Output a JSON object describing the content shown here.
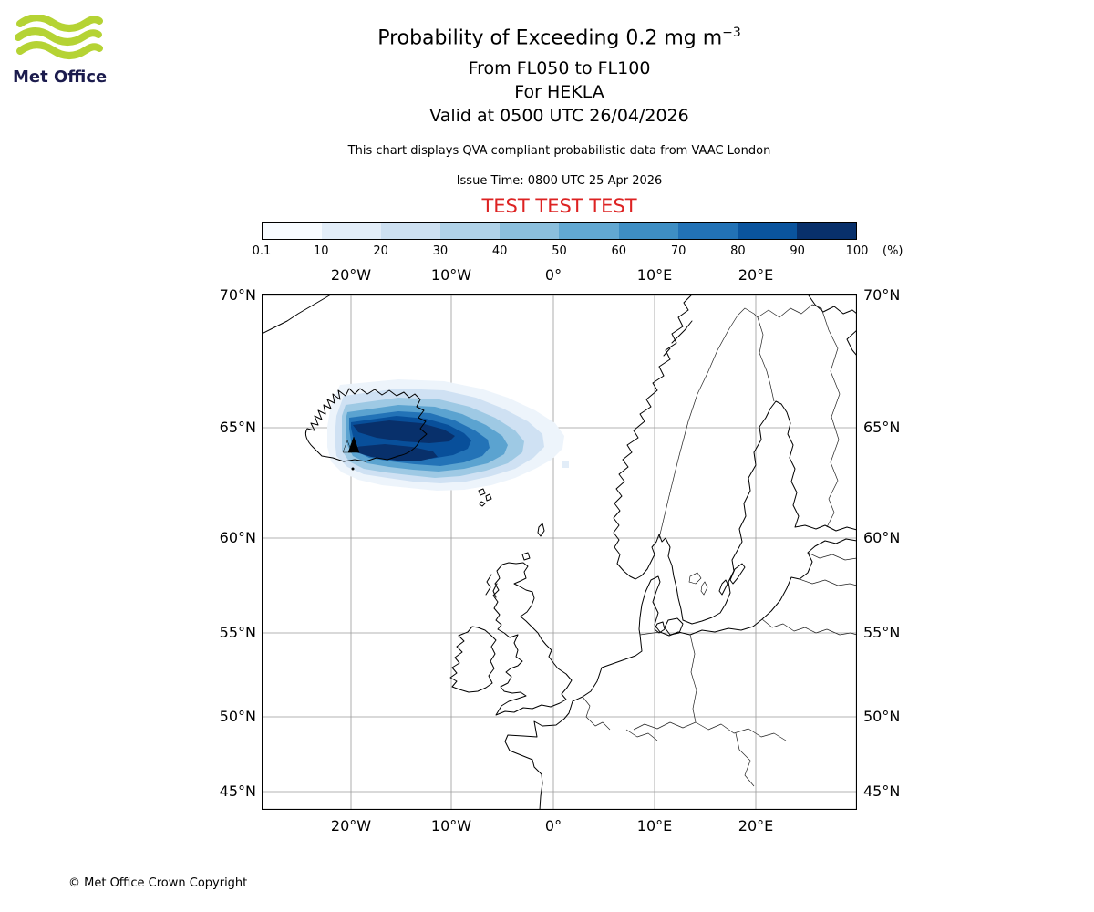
{
  "logo": {
    "brand": "Met Office"
  },
  "header": {
    "title_main": "Probability of Exceeding 0.2 mg m",
    "title_sup": "−3",
    "flight_levels": "From FL050 to FL100",
    "volcano_line": "For HEKLA",
    "valid_line": "Valid at 0500 UTC 26/04/2026",
    "note": "This chart displays QVA compliant probabilistic data from VAAC London",
    "issue_time": "Issue Time: 0800 UTC 25 Apr 2026",
    "test_banner": "TEST TEST TEST"
  },
  "colorbar": {
    "unit_label": "(%)",
    "tick_labels": [
      "0.1",
      "10",
      "20",
      "30",
      "40",
      "50",
      "60",
      "70",
      "80",
      "90",
      "100"
    ],
    "colors": [
      "#f7fbff",
      "#e2edf8",
      "#cde0f1",
      "#b0d2e8",
      "#8bbfdd",
      "#62a8d2",
      "#3e8ec4",
      "#2272b6",
      "#0a549e",
      "#08306b"
    ]
  },
  "map": {
    "lon_labels": [
      "20°W",
      "10°W",
      "0°",
      "10°E",
      "20°E"
    ],
    "lat_labels": [
      "70°N",
      "65°N",
      "60°N",
      "55°N",
      "50°N",
      "45°N"
    ]
  },
  "footer": {
    "copyright": "© Met Office Crown Copyright"
  },
  "colors": {
    "test_red": "#dd2222",
    "logo_green": "#b5d334",
    "logo_text_navy": "#1b1b4d",
    "plume_darkest": "#08306b"
  },
  "chart_data": {
    "type": "heatmap",
    "title": "Probability of Exceeding 0.2 mg m−3",
    "subtitle": [
      "From FL050 to FL100",
      "For HEKLA",
      "Valid at 0500 UTC 26/04/2026"
    ],
    "issue_time": "0800 UTC 25 Apr 2026",
    "source": "VAAC London",
    "compliance_note": "QVA compliant probabilistic data",
    "units": "%",
    "threshold": "0.2 mg m−3",
    "flight_level_range": [
      "FL050",
      "FL100"
    ],
    "volcano": {
      "name": "HEKLA",
      "approx_lon": -19.7,
      "approx_lat": 64.0
    },
    "probability_bins": [
      0.1,
      10,
      20,
      30,
      40,
      50,
      60,
      70,
      80,
      90,
      100
    ],
    "bin_colors": [
      "#f7fbff",
      "#e2edf8",
      "#cde0f1",
      "#b0d2e8",
      "#8bbfdd",
      "#62a8d2",
      "#3e8ec4",
      "#2272b6",
      "#0a549e",
      "#08306b"
    ],
    "projection": "Mercator",
    "extent": {
      "lon_min": -28.8,
      "lon_max": 30.0,
      "lat_min": 43.8,
      "lat_max": 70.2
    },
    "grid_lons_deg": [
      -20,
      -10,
      0,
      10,
      20
    ],
    "grid_lats_deg": [
      70,
      65,
      60,
      55,
      50,
      45
    ],
    "plume_summary": {
      "description": "Single gridded ash-probability plume originating at Hekla, Iceland, extending east over the North Atlantic",
      "lon_range": [
        -22,
        -3
      ],
      "lat_range": [
        62.8,
        66.6
      ],
      "core_lat": 64.5,
      "max_probability_band": "90-100"
    }
  }
}
